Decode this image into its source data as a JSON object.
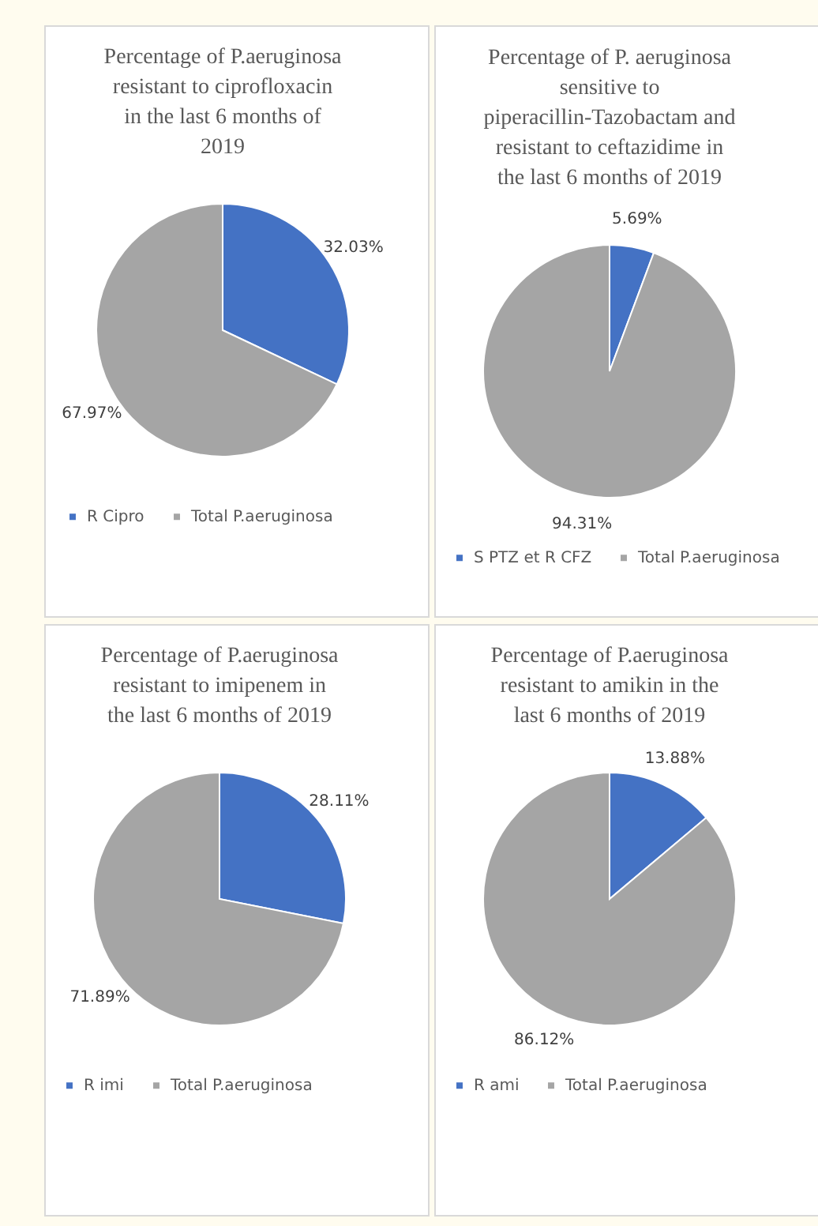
{
  "chart_data": [
    {
      "type": "pie",
      "title": "Percentage of P.aeruginosa  resistant to ciprofloxacin in the last 6 months of 2019",
      "categories": [
        "R Cipro",
        "Total P.aeruginosa"
      ],
      "values": [
        32.03,
        67.97
      ],
      "value_labels": [
        "32.03%",
        "67.97%"
      ],
      "colors": [
        "#4472c4",
        "#a5a5a5"
      ],
      "legend": "bottom"
    },
    {
      "type": "pie",
      "title": "Percentage of P. aeruginosa sensitive to piperacillin-Tazobactam and resistant to ceftazidime in the last 6 months of 2019",
      "categories": [
        "S PTZ et R CFZ",
        "Total P.aeruginosa"
      ],
      "values": [
        5.69,
        94.31
      ],
      "value_labels": [
        "5.69%",
        "94.31%"
      ],
      "colors": [
        "#4472c4",
        "#a5a5a5"
      ],
      "legend": "bottom"
    },
    {
      "type": "pie",
      "title": "Percentage of P.aeruginosa resistant to imipenem in the last 6 months of 2019",
      "categories": [
        "R imi",
        "Total P.aeruginosa"
      ],
      "values": [
        28.11,
        71.89
      ],
      "value_labels": [
        "28.11%",
        "71.89%"
      ],
      "colors": [
        "#4472c4",
        "#a5a5a5"
      ],
      "legend": "bottom"
    },
    {
      "type": "pie",
      "title": "Percentage of P.aeruginosa resistant to amikin in the last 6 months of 2019",
      "categories": [
        "R ami",
        "Total P.aeruginosa"
      ],
      "values": [
        13.88,
        86.12
      ],
      "value_labels": [
        "13.88%",
        "86.12%"
      ],
      "colors": [
        "#4472c4",
        "#a5a5a5"
      ],
      "legend": "bottom"
    }
  ]
}
